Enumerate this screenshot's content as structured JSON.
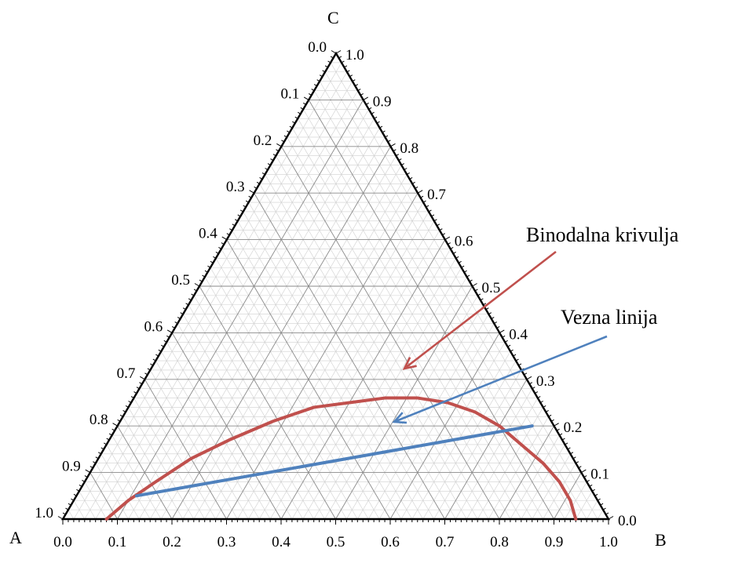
{
  "chart_data": {
    "type": "ternary",
    "vertices": {
      "A": "A",
      "B": "B",
      "C": "C"
    },
    "bottom_axis_ticks": [
      "0.0",
      "0.1",
      "0.2",
      "0.3",
      "0.4",
      "0.5",
      "0.6",
      "0.7",
      "0.8",
      "0.9",
      "1.0"
    ],
    "left_axis_ticks": [
      "0.0",
      "0.1",
      "0.2",
      "0.3",
      "0.4",
      "0.5",
      "0.6",
      "0.7",
      "0.8",
      "0.9",
      "1.0"
    ],
    "right_axis_ticks": [
      "1.0",
      "0.9",
      "0.8",
      "0.7",
      "0.6",
      "0.5",
      "0.4",
      "0.3",
      "0.2",
      "0.1",
      "0.0"
    ],
    "minor_grid_step": 0.02,
    "major_grid_step": 0.1,
    "binodal_curve": {
      "label": "Binodalna krivulja",
      "color": "#c0504d",
      "points": [
        [
          0.08,
          0.0
        ],
        [
          0.1,
          0.04
        ],
        [
          0.13,
          0.08
        ],
        [
          0.17,
          0.13
        ],
        [
          0.22,
          0.17
        ],
        [
          0.28,
          0.21
        ],
        [
          0.34,
          0.24
        ],
        [
          0.4,
          0.25
        ],
        [
          0.46,
          0.26
        ],
        [
          0.52,
          0.26
        ],
        [
          0.58,
          0.25
        ],
        [
          0.64,
          0.23
        ],
        [
          0.7,
          0.2
        ],
        [
          0.76,
          0.16
        ],
        [
          0.82,
          0.12
        ],
        [
          0.87,
          0.08
        ],
        [
          0.91,
          0.04
        ],
        [
          0.94,
          0.0
        ]
      ]
    },
    "tie_line": {
      "label": "Vezna linija",
      "color": "#4f81bd",
      "from": [
        0.11,
        0.05
      ],
      "to": [
        0.76,
        0.2
      ]
    }
  }
}
